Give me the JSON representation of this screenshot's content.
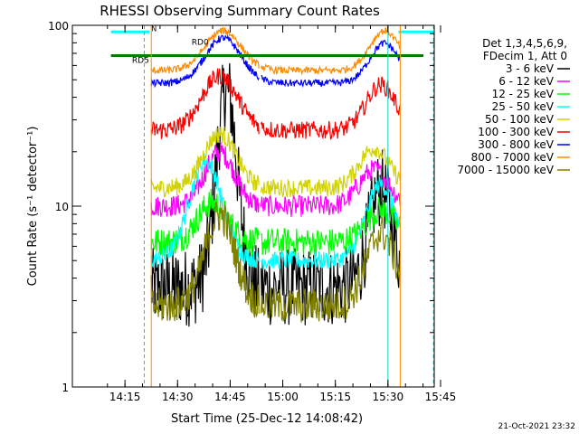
{
  "chart_data": {
    "type": "line",
    "title": "RHESSI Observing Summary Count Rates",
    "xlabel": "Start Time (25-Dec-12 14:08:42)",
    "ylabel": "Count Rate (s⁻¹ detector⁻¹)",
    "yscale": "log",
    "ylim": [
      1,
      100
    ],
    "xlim_minutes": [
      14.0,
      15.72
    ],
    "x_ticks": [
      "14:15",
      "14:30",
      "14:45",
      "15:00",
      "15:15",
      "15:30",
      "15:45"
    ],
    "y_ticks": [
      "1",
      "10",
      "100"
    ],
    "legend_header": [
      "Det 1,3,4,5,6,9,",
      "FDecim 1, Att 0"
    ],
    "timestamp": "21-Oct-2021 23:32",
    "annotations": {
      "rd0": "RD0",
      "rd5": "RD5",
      "n": "N"
    },
    "series": [
      {
        "name": "3 - 6 keV",
        "color": "#000000"
      },
      {
        "name": "6 - 12 keV",
        "color": "#ff00ff"
      },
      {
        "name": "12 - 25 keV",
        "color": "#00ff00"
      },
      {
        "name": "25 - 50 keV",
        "color": "#00ffff"
      },
      {
        "name": "50 - 100 keV",
        "color": "#d2d200"
      },
      {
        "name": "100 - 300 keV",
        "color": "#ff0000"
      },
      {
        "name": "300 - 800 keV",
        "color": "#0000ff"
      },
      {
        "name": "800 - 7000 keV",
        "color": "#ff8c00"
      },
      {
        "name": "7000 - 15000 keV",
        "color": "#808000"
      }
    ]
  }
}
